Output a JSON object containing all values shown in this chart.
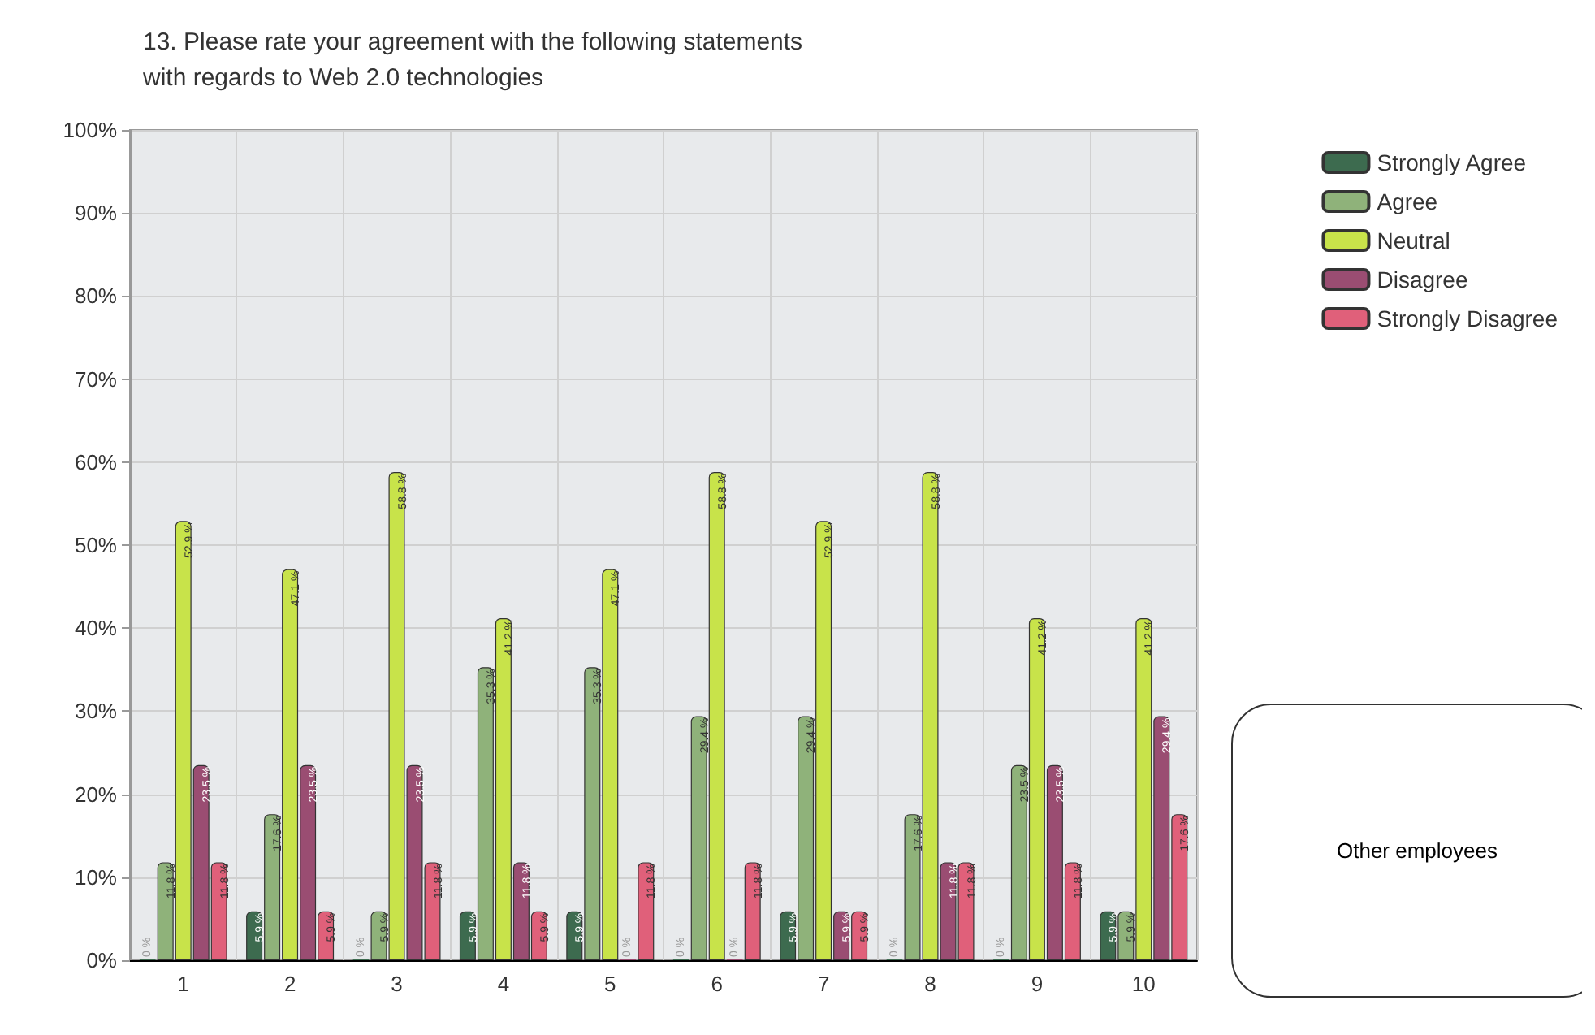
{
  "chart_data": {
    "type": "bar",
    "title": "13. Please rate your agreement with the following statements with regards to Web 2.0 technologies",
    "categories": [
      "1",
      "2",
      "3",
      "4",
      "5",
      "6",
      "7",
      "8",
      "9",
      "10"
    ],
    "series": [
      {
        "name": "Strongly Agree",
        "color": "#3d6b4f",
        "values": [
          0,
          5.9,
          0,
          5.9,
          5.9,
          0,
          5.9,
          0,
          0,
          5.9
        ],
        "value_labels": [
          "0 %",
          "5.9 %",
          "0 %",
          "5.9 %",
          "5.9 %",
          "0 %",
          "5.9 %",
          "0 %",
          "0 %",
          "5.9 %"
        ]
      },
      {
        "name": "Agree",
        "color": "#8fb27a",
        "values": [
          11.8,
          17.6,
          5.9,
          35.3,
          35.3,
          29.4,
          29.4,
          17.6,
          23.5,
          5.9
        ],
        "value_labels": [
          "11.8 %",
          "17.6 %",
          "5.9 %",
          "35.3 %",
          "35.3 %",
          "29.4 %",
          "29.4 %",
          "17.6 %",
          "23.5 %",
          "5.9 %"
        ]
      },
      {
        "name": "Neutral",
        "color": "#c8e34a",
        "values": [
          52.9,
          47.1,
          58.8,
          41.2,
          47.1,
          58.8,
          52.9,
          58.8,
          41.2,
          41.2
        ],
        "value_labels": [
          "52.9 %",
          "47.1 %",
          "58.8 %",
          "41.2 %",
          "47.1 %",
          "58.8 %",
          "52.9 %",
          "58.8 %",
          "41.2 %",
          "41.2 %"
        ]
      },
      {
        "name": "Disagree",
        "color": "#9a4d72",
        "values": [
          23.5,
          23.5,
          23.5,
          11.8,
          0,
          0,
          5.9,
          11.8,
          23.5,
          29.4
        ],
        "value_labels": [
          "23.5 %",
          "23.5 %",
          "23.5 %",
          "11.8 %",
          "0 %",
          "0 %",
          "5.9 %",
          "11.8 %",
          "23.5 %",
          "29.4 %"
        ]
      },
      {
        "name": "Strongly Disagree",
        "color": "#e0607a",
        "values": [
          11.8,
          5.9,
          11.8,
          5.9,
          11.8,
          11.8,
          5.9,
          11.8,
          11.8,
          17.6
        ],
        "value_labels": [
          "11.8 %",
          "5.9 %",
          "11.8 %",
          "5.9 %",
          "11.8 %",
          "11.8 %",
          "5.9 %",
          "11.8 %",
          "11.8 %",
          "17.6 %"
        ]
      }
    ],
    "ylim": [
      0,
      100
    ],
    "yticks": [
      {
        "value": 0,
        "label": "0%"
      },
      {
        "value": 10,
        "label": "10%"
      },
      {
        "value": 20,
        "label": "20%"
      },
      {
        "value": 30,
        "label": "30%"
      },
      {
        "value": 40,
        "label": "40%"
      },
      {
        "value": 50,
        "label": "50%"
      },
      {
        "value": 60,
        "label": "60%"
      },
      {
        "value": 70,
        "label": "70%"
      },
      {
        "value": 80,
        "label": "80%"
      },
      {
        "value": 90,
        "label": "90%"
      },
      {
        "value": 100,
        "label": "100%"
      }
    ],
    "grid": true,
    "legend": "top right",
    "annotations": [
      "Other employees"
    ]
  }
}
